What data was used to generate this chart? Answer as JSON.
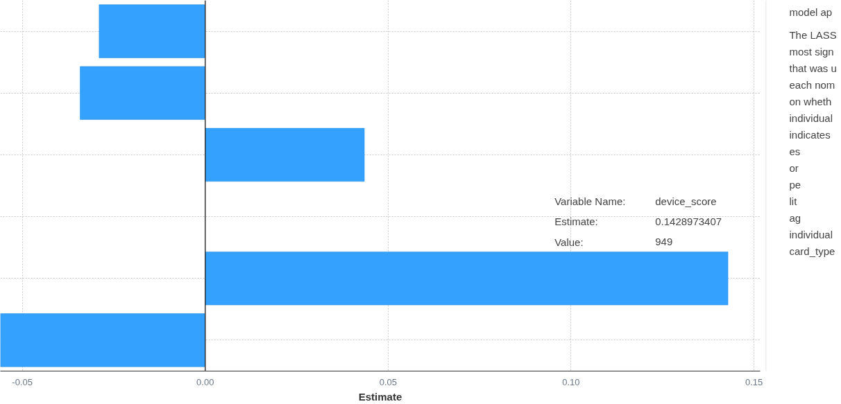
{
  "chart_data": {
    "type": "bar",
    "orientation": "horizontal",
    "xlabel": "Estimate",
    "categories": [
      null,
      null,
      null,
      null,
      null,
      null
    ],
    "values": [
      -0.029,
      -0.0342,
      0.0435,
      null,
      0.1429,
      -0.056
    ],
    "color": "#33a1fd",
    "xlim": [
      -0.056,
      0.1517
    ],
    "xticks": [
      {
        "value": -0.05,
        "label": "-0.05"
      },
      {
        "value": 0,
        "label": "0.00"
      },
      {
        "value": 0.05,
        "label": "0.05"
      },
      {
        "value": 0.1,
        "label": "0.10"
      },
      {
        "value": 0.15,
        "label": "0.15"
      }
    ],
    "tick_labels": "x",
    "grid": true,
    "ref_lines": [
      {
        "axis": "x",
        "value": 0,
        "color": "#333333"
      }
    ],
    "annotations": [
      "Variable Name:",
      "device_score",
      "Estimate:",
      "0.1428973407",
      "Value:",
      "949",
      "model ap",
      "The LASS",
      "most sign",
      "that was u",
      "each nom",
      "on wheth",
      "individual",
      "indicates",
      "es",
      "or",
      "pe",
      "lit",
      "ag",
      "individual",
      "card_type"
    ]
  }
}
